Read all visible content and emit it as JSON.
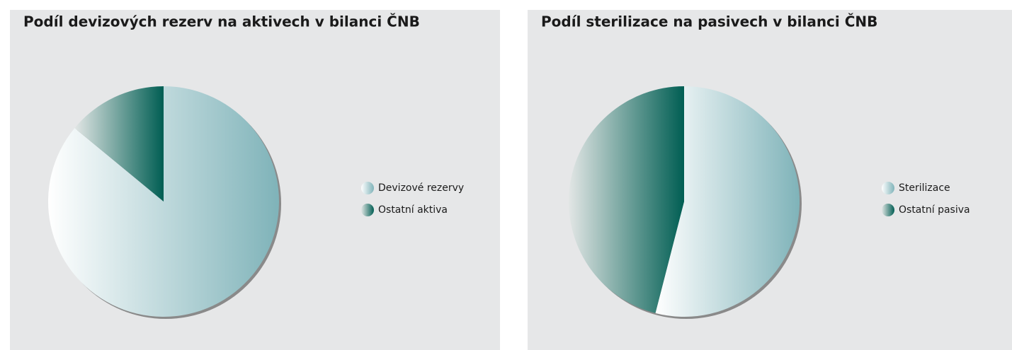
{
  "chart_data": [
    {
      "type": "pie",
      "title": "Podíl devizových rezerv na aktivech v bilanci ČNB",
      "categories": [
        "Devizové rezervy",
        "Ostatní aktiva"
      ],
      "values": [
        86,
        14
      ],
      "colors": [
        "#7fb3b9",
        "#005e53"
      ],
      "legend": "right"
    },
    {
      "type": "pie",
      "title": "Podíl sterilizace na pasivech v bilanci ČNB",
      "categories": [
        "Sterilizace",
        "Ostatní pasiva"
      ],
      "values": [
        54,
        46
      ],
      "colors": [
        "#7fb3b9",
        "#005e53"
      ],
      "legend": "right"
    }
  ]
}
